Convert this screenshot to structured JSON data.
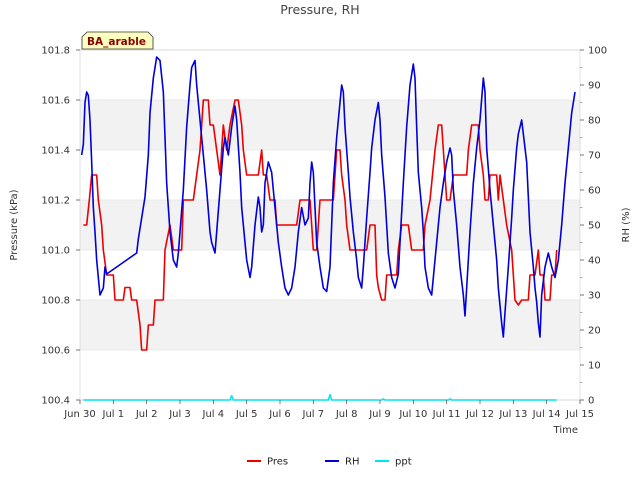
{
  "chart_data": {
    "type": "line",
    "title": "Pressure, RH",
    "xlabel": "Time",
    "ylabel_left": "Pressure (kPa)",
    "ylabel_right": "RH (%)",
    "site_label": "BA_arable",
    "x_ticks": [
      "Jun 30",
      "Jul 1",
      "Jul 2",
      "Jul 3",
      "Jul 4",
      "Jul 5",
      "Jul 6",
      "Jul 7",
      "Jul 8",
      "Jul 9",
      "Jul 10",
      "Jul 11",
      "Jul 12",
      "Jul 13",
      "Jul 14",
      "Jul 15"
    ],
    "xlim": [
      0,
      15
    ],
    "ylim_left": [
      100.4,
      101.8
    ],
    "y_ticks_left": [
      "100.4",
      "100.6",
      "100.8",
      "101.0",
      "101.2",
      "101.4",
      "101.6",
      "101.8"
    ],
    "ylim_right": [
      0,
      100
    ],
    "y_ticks_right": [
      "0",
      "10",
      "20",
      "30",
      "40",
      "50",
      "60",
      "70",
      "80",
      "90",
      "100"
    ],
    "colors": {
      "Pres": "#ee0000",
      "RH": "#0000dd",
      "ppt": "#00e5ee"
    },
    "series": [
      {
        "name": "Pres",
        "axis": "left",
        "points": [
          [
            0.1,
            101.1
          ],
          [
            0.2,
            101.1
          ],
          [
            0.28,
            101.2
          ],
          [
            0.35,
            101.3
          ],
          [
            0.5,
            101.3
          ],
          [
            0.55,
            101.2
          ],
          [
            0.65,
            101.1
          ],
          [
            0.7,
            101.0
          ],
          [
            0.8,
            100.9
          ],
          [
            1.0,
            100.9
          ],
          [
            1.05,
            100.8
          ],
          [
            1.3,
            100.8
          ],
          [
            1.35,
            100.85
          ],
          [
            1.5,
            100.85
          ],
          [
            1.55,
            100.8
          ],
          [
            1.7,
            100.8
          ],
          [
            1.8,
            100.7
          ],
          [
            1.85,
            100.6
          ],
          [
            2.0,
            100.6
          ],
          [
            2.05,
            100.7
          ],
          [
            2.2,
            100.7
          ],
          [
            2.25,
            100.8
          ],
          [
            2.5,
            100.8
          ],
          [
            2.55,
            101.0
          ],
          [
            2.7,
            101.1
          ],
          [
            2.8,
            101.0
          ],
          [
            3.05,
            101.0
          ],
          [
            3.1,
            101.2
          ],
          [
            3.4,
            101.2
          ],
          [
            3.5,
            101.3
          ],
          [
            3.6,
            101.4
          ],
          [
            3.7,
            101.6
          ],
          [
            3.85,
            101.6
          ],
          [
            3.9,
            101.5
          ],
          [
            4.0,
            101.5
          ],
          [
            4.1,
            101.4
          ],
          [
            4.2,
            101.3
          ],
          [
            4.3,
            101.5
          ],
          [
            4.4,
            101.4
          ],
          [
            4.5,
            101.5
          ],
          [
            4.65,
            101.6
          ],
          [
            4.75,
            101.6
          ],
          [
            4.85,
            101.5
          ],
          [
            4.9,
            101.4
          ],
          [
            5.0,
            101.3
          ],
          [
            5.35,
            101.3
          ],
          [
            5.45,
            101.4
          ],
          [
            5.5,
            101.3
          ],
          [
            5.6,
            101.3
          ],
          [
            5.7,
            101.2
          ],
          [
            5.85,
            101.2
          ],
          [
            5.9,
            101.1
          ],
          [
            6.5,
            101.1
          ],
          [
            6.6,
            101.2
          ],
          [
            6.9,
            101.2
          ],
          [
            6.95,
            101.1
          ],
          [
            7.0,
            101.0
          ],
          [
            7.1,
            101.0
          ],
          [
            7.2,
            101.2
          ],
          [
            7.6,
            101.2
          ],
          [
            7.7,
            101.4
          ],
          [
            7.8,
            101.4
          ],
          [
            7.85,
            101.3
          ],
          [
            7.95,
            101.2
          ],
          [
            8.0,
            101.1
          ],
          [
            8.1,
            101.0
          ],
          [
            8.6,
            101.0
          ],
          [
            8.7,
            101.1
          ],
          [
            8.85,
            101.1
          ],
          [
            8.9,
            100.9
          ],
          [
            8.95,
            100.85
          ],
          [
            9.05,
            100.8
          ],
          [
            9.15,
            100.8
          ],
          [
            9.2,
            100.9
          ],
          [
            9.5,
            100.9
          ],
          [
            9.55,
            101.0
          ],
          [
            9.65,
            101.1
          ],
          [
            9.85,
            101.1
          ],
          [
            9.95,
            101.0
          ],
          [
            10.3,
            101.0
          ],
          [
            10.35,
            101.1
          ],
          [
            10.5,
            101.2
          ],
          [
            10.65,
            101.4
          ],
          [
            10.75,
            101.5
          ],
          [
            10.85,
            101.5
          ],
          [
            10.9,
            101.4
          ],
          [
            10.95,
            101.3
          ],
          [
            11.0,
            101.2
          ],
          [
            11.1,
            101.2
          ],
          [
            11.2,
            101.3
          ],
          [
            11.6,
            101.3
          ],
          [
            11.65,
            101.4
          ],
          [
            11.75,
            101.5
          ],
          [
            11.95,
            101.5
          ],
          [
            12.0,
            101.4
          ],
          [
            12.1,
            101.3
          ],
          [
            12.15,
            101.2
          ],
          [
            12.25,
            101.2
          ],
          [
            12.3,
            101.3
          ],
          [
            12.5,
            101.3
          ],
          [
            12.55,
            101.2
          ],
          [
            12.6,
            101.3
          ],
          [
            12.7,
            101.2
          ],
          [
            12.8,
            101.1
          ],
          [
            12.95,
            101.0
          ],
          [
            13.05,
            100.8
          ],
          [
            13.15,
            100.78
          ],
          [
            13.25,
            100.8
          ],
          [
            13.45,
            100.8
          ],
          [
            13.5,
            100.9
          ],
          [
            13.65,
            100.9
          ],
          [
            13.75,
            101.0
          ],
          [
            13.8,
            100.9
          ],
          [
            13.9,
            100.9
          ],
          [
            13.95,
            100.8
          ],
          [
            14.1,
            100.8
          ],
          [
            14.15,
            100.9
          ],
          [
            14.25,
            100.9
          ],
          [
            14.3,
            101.0
          ]
        ]
      },
      {
        "name": "RH",
        "axis": "right",
        "points": [
          [
            0.05,
            70
          ],
          [
            0.1,
            73
          ],
          [
            0.15,
            85
          ],
          [
            0.2,
            88
          ],
          [
            0.25,
            87
          ],
          [
            0.3,
            80
          ],
          [
            0.35,
            68
          ],
          [
            0.4,
            55
          ],
          [
            0.45,
            48
          ],
          [
            0.5,
            40
          ],
          [
            0.55,
            35
          ],
          [
            0.6,
            30
          ],
          [
            0.7,
            32
          ],
          [
            0.75,
            38
          ],
          [
            0.8,
            36
          ],
          [
            1.1,
            38
          ],
          [
            1.4,
            40
          ],
          [
            1.7,
            42
          ],
          [
            1.75,
            46
          ],
          [
            1.85,
            52
          ],
          [
            1.95,
            58
          ],
          [
            2.05,
            70
          ],
          [
            2.1,
            82
          ],
          [
            2.2,
            92
          ],
          [
            2.3,
            98
          ],
          [
            2.4,
            97
          ],
          [
            2.5,
            88
          ],
          [
            2.55,
            75
          ],
          [
            2.6,
            62
          ],
          [
            2.7,
            48
          ],
          [
            2.8,
            40
          ],
          [
            2.9,
            38
          ],
          [
            2.95,
            42
          ],
          [
            3.0,
            48
          ],
          [
            3.1,
            60
          ],
          [
            3.2,
            78
          ],
          [
            3.3,
            90
          ],
          [
            3.35,
            95
          ],
          [
            3.45,
            97
          ],
          [
            3.5,
            90
          ],
          [
            3.6,
            80
          ],
          [
            3.7,
            70
          ],
          [
            3.8,
            60
          ],
          [
            3.9,
            48
          ],
          [
            3.95,
            45
          ],
          [
            4.05,
            42
          ],
          [
            4.1,
            48
          ],
          [
            4.2,
            60
          ],
          [
            4.3,
            72
          ],
          [
            4.35,
            75
          ],
          [
            4.45,
            70
          ],
          [
            4.55,
            78
          ],
          [
            4.65,
            84
          ],
          [
            4.7,
            80
          ],
          [
            4.8,
            65
          ],
          [
            4.85,
            55
          ],
          [
            4.95,
            45
          ],
          [
            5.0,
            40
          ],
          [
            5.1,
            35
          ],
          [
            5.15,
            38
          ],
          [
            5.25,
            50
          ],
          [
            5.35,
            58
          ],
          [
            5.4,
            55
          ],
          [
            5.45,
            48
          ],
          [
            5.5,
            50
          ],
          [
            5.55,
            62
          ],
          [
            5.65,
            68
          ],
          [
            5.75,
            65
          ],
          [
            5.85,
            55
          ],
          [
            5.95,
            45
          ],
          [
            6.05,
            38
          ],
          [
            6.15,
            32
          ],
          [
            6.25,
            30
          ],
          [
            6.35,
            32
          ],
          [
            6.45,
            38
          ],
          [
            6.55,
            48
          ],
          [
            6.65,
            55
          ],
          [
            6.75,
            50
          ],
          [
            6.85,
            52
          ],
          [
            6.9,
            62
          ],
          [
            6.95,
            68
          ],
          [
            7.0,
            65
          ],
          [
            7.05,
            55
          ],
          [
            7.1,
            45
          ],
          [
            7.2,
            38
          ],
          [
            7.3,
            32
          ],
          [
            7.4,
            31
          ],
          [
            7.5,
            38
          ],
          [
            7.55,
            50
          ],
          [
            7.6,
            62
          ],
          [
            7.7,
            75
          ],
          [
            7.8,
            85
          ],
          [
            7.85,
            90
          ],
          [
            7.9,
            88
          ],
          [
            7.95,
            78
          ],
          [
            8.05,
            65
          ],
          [
            8.1,
            58
          ],
          [
            8.2,
            48
          ],
          [
            8.3,
            40
          ],
          [
            8.35,
            35
          ],
          [
            8.45,
            32
          ],
          [
            8.5,
            38
          ],
          [
            8.6,
            52
          ],
          [
            8.7,
            65
          ],
          [
            8.75,
            72
          ],
          [
            8.85,
            80
          ],
          [
            8.95,
            85
          ],
          [
            9.0,
            80
          ],
          [
            9.05,
            70
          ],
          [
            9.15,
            58
          ],
          [
            9.2,
            50
          ],
          [
            9.25,
            42
          ],
          [
            9.35,
            35
          ],
          [
            9.45,
            32
          ],
          [
            9.55,
            36
          ],
          [
            9.6,
            45
          ],
          [
            9.7,
            62
          ],
          [
            9.8,
            78
          ],
          [
            9.9,
            90
          ],
          [
            10.0,
            96
          ],
          [
            10.05,
            92
          ],
          [
            10.1,
            78
          ],
          [
            10.15,
            65
          ],
          [
            10.25,
            55
          ],
          [
            10.3,
            48
          ],
          [
            10.35,
            38
          ],
          [
            10.45,
            32
          ],
          [
            10.55,
            30
          ],
          [
            10.6,
            35
          ],
          [
            10.7,
            45
          ],
          [
            10.8,
            55
          ],
          [
            10.9,
            62
          ],
          [
            11.0,
            68
          ],
          [
            11.1,
            72
          ],
          [
            11.15,
            70
          ],
          [
            11.2,
            60
          ],
          [
            11.3,
            50
          ],
          [
            11.4,
            38
          ],
          [
            11.5,
            30
          ],
          [
            11.55,
            24
          ],
          [
            11.6,
            32
          ],
          [
            11.7,
            48
          ],
          [
            11.8,
            62
          ],
          [
            11.9,
            72
          ],
          [
            12.0,
            80
          ],
          [
            12.1,
            92
          ],
          [
            12.15,
            88
          ],
          [
            12.2,
            72
          ],
          [
            12.3,
            60
          ],
          [
            12.4,
            50
          ],
          [
            12.5,
            40
          ],
          [
            12.55,
            32
          ],
          [
            12.65,
            22
          ],
          [
            12.7,
            18
          ],
          [
            12.75,
            25
          ],
          [
            12.85,
            38
          ],
          [
            12.95,
            52
          ],
          [
            13.0,
            60
          ],
          [
            13.1,
            72
          ],
          [
            13.15,
            76
          ],
          [
            13.25,
            80
          ],
          [
            13.35,
            72
          ],
          [
            13.4,
            68
          ],
          [
            13.45,
            58
          ],
          [
            13.5,
            48
          ],
          [
            13.6,
            38
          ],
          [
            13.65,
            32
          ],
          [
            13.7,
            28
          ],
          [
            13.75,
            22
          ],
          [
            13.8,
            18
          ],
          [
            13.85,
            30
          ],
          [
            13.95,
            38
          ],
          [
            14.05,
            42
          ],
          [
            14.15,
            38
          ],
          [
            14.25,
            35
          ],
          [
            14.35,
            40
          ],
          [
            14.45,
            50
          ],
          [
            14.55,
            62
          ],
          [
            14.65,
            72
          ],
          [
            14.75,
            82
          ],
          [
            14.85,
            88
          ]
        ]
      },
      {
        "name": "ppt",
        "axis": "right",
        "points": [
          [
            0.1,
            0
          ],
          [
            4.5,
            0
          ],
          [
            4.55,
            1.2
          ],
          [
            4.6,
            0
          ],
          [
            7.45,
            0
          ],
          [
            7.5,
            1.5
          ],
          [
            7.55,
            0
          ],
          [
            9.05,
            0
          ],
          [
            9.1,
            0.3
          ],
          [
            9.15,
            0
          ],
          [
            11.05,
            0
          ],
          [
            11.1,
            0.3
          ],
          [
            11.15,
            0
          ],
          [
            14.3,
            0
          ]
        ]
      }
    ]
  }
}
